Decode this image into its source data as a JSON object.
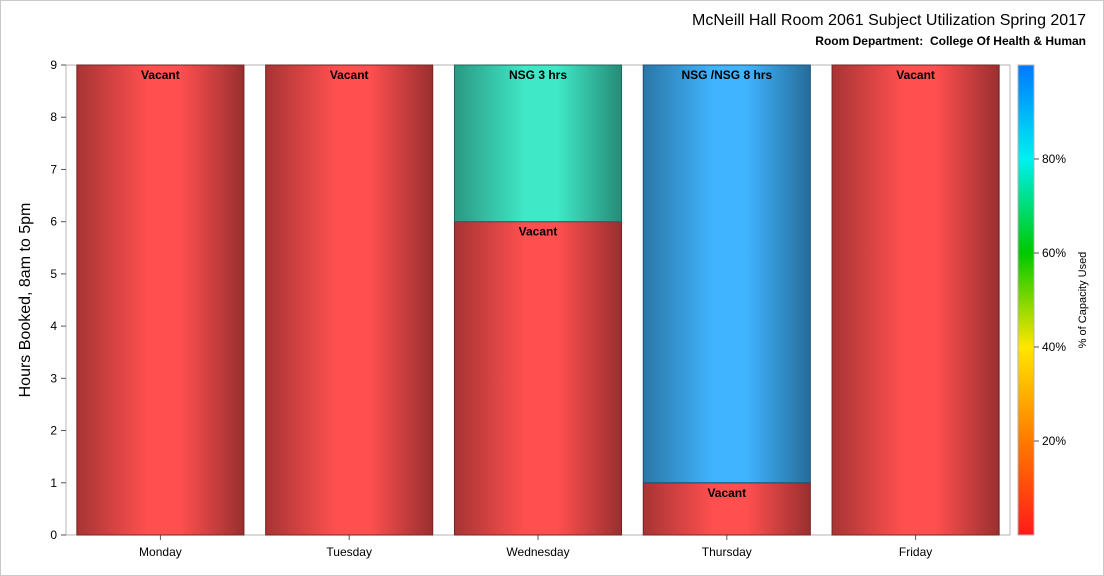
{
  "chart_data": {
    "type": "bar",
    "stacked": true,
    "title": "McNeill Hall Room 2061 Subject Utilization Spring 2017",
    "subtitle": "Room Department:  College Of Health & Human",
    "ylabel": "Hours Booked, 8am to 5pm",
    "xlabel": "",
    "ylim": [
      0,
      9
    ],
    "yticks": [
      "0",
      "1",
      "2",
      "3",
      "4",
      "5",
      "6",
      "7",
      "8",
      "9"
    ],
    "categories": [
      "Monday",
      "Tuesday",
      "Wednesday",
      "Thursday",
      "Friday"
    ],
    "segments": [
      {
        "day": "Monday",
        "start": 0,
        "end": 9,
        "label": "Vacant",
        "color": "#ff4f4f"
      },
      {
        "day": "Tuesday",
        "start": 0,
        "end": 9,
        "label": "Vacant",
        "color": "#ff4f4f"
      },
      {
        "day": "Wednesday",
        "start": 0,
        "end": 6,
        "label": "Vacant",
        "color": "#ff4f4f"
      },
      {
        "day": "Wednesday",
        "start": 6,
        "end": 9,
        "label": "NSG 3 hrs",
        "color": "#3fe8c6"
      },
      {
        "day": "Thursday",
        "start": 0,
        "end": 1,
        "label": "Vacant",
        "color": "#ff4f4f"
      },
      {
        "day": "Thursday",
        "start": 1,
        "end": 9,
        "label": "NSG /NSG 8 hrs",
        "color": "#40b4ff"
      },
      {
        "day": "Friday",
        "start": 0,
        "end": 9,
        "label": "Vacant",
        "color": "#ff4f4f"
      }
    ],
    "colorbar": {
      "label": "% of Capacity Used",
      "range": [
        0,
        100
      ],
      "ticks": [
        "20%",
        "40%",
        "60%",
        "80%"
      ],
      "tick_values": [
        20,
        40,
        60,
        80
      ],
      "stops": [
        "#ff1a1a",
        "#ff7a00",
        "#ffe600",
        "#00c800",
        "#00f0f0",
        "#0078ff"
      ]
    }
  }
}
